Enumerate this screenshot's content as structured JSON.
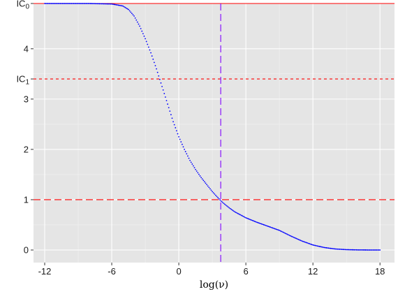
{
  "chart_data": {
    "type": "scatter",
    "xlabel": "log(ν)",
    "ylabel": "",
    "xlim": [
      -13,
      19.3
    ],
    "ylim": [
      -0.25,
      4.9
    ],
    "x_ticks": [
      -12,
      -6,
      0,
      6,
      12,
      18
    ],
    "x_tick_labels": [
      "-12",
      "-6",
      "0",
      "6",
      "12",
      "18"
    ],
    "y_ticks": [
      0,
      1,
      2,
      3,
      4
    ],
    "y_tick_labels": [
      "0",
      "1",
      "2",
      "3",
      "4"
    ],
    "grid": true,
    "panel_background": "#e5e5e5",
    "series": [
      {
        "color": "#0000ff",
        "marker": "point",
        "x_range": [
          -12,
          18
        ],
        "points": [
          [
            -12,
            4.9
          ],
          [
            -8,
            4.9
          ],
          [
            -6,
            4.89
          ],
          [
            -5,
            4.85
          ],
          [
            -4.5,
            4.78
          ],
          [
            -4,
            4.65
          ],
          [
            -3.5,
            4.45
          ],
          [
            -3,
            4.2
          ],
          [
            -2.5,
            3.92
          ],
          [
            -2,
            3.6
          ],
          [
            -1.5,
            3.25
          ],
          [
            -1,
            2.9
          ],
          [
            -0.5,
            2.55
          ],
          [
            0,
            2.25
          ],
          [
            0.5,
            2.0
          ],
          [
            1,
            1.78
          ],
          [
            1.5,
            1.6
          ],
          [
            2,
            1.44
          ],
          [
            2.5,
            1.3
          ],
          [
            3,
            1.16
          ],
          [
            3.5,
            1.04
          ],
          [
            3.8,
            0.97
          ],
          [
            4,
            0.93
          ],
          [
            4.5,
            0.84
          ],
          [
            5,
            0.76
          ],
          [
            6,
            0.64
          ],
          [
            7,
            0.55
          ],
          [
            8,
            0.47
          ],
          [
            9,
            0.39
          ],
          [
            10,
            0.28
          ],
          [
            11,
            0.18
          ],
          [
            12,
            0.1
          ],
          [
            13,
            0.05
          ],
          [
            14,
            0.02
          ],
          [
            15,
            0.007
          ],
          [
            16,
            0.002
          ],
          [
            17,
            0.0
          ],
          [
            18,
            0.0
          ]
        ]
      }
    ],
    "reference_lines": [
      {
        "orientation": "horizontal",
        "y": 4.9,
        "label": "IC0",
        "label_main": "IC",
        "label_sub": "0",
        "color": "#ff0000",
        "style": "solid"
      },
      {
        "orientation": "horizontal",
        "y": 3.4,
        "label": "IC1",
        "label_main": "IC",
        "label_sub": "1",
        "color": "#ff0000",
        "style": "dashed"
      },
      {
        "orientation": "horizontal",
        "y": 1,
        "color": "#ff0000",
        "style": "longdash"
      },
      {
        "orientation": "vertical",
        "x": 3.75,
        "color": "#7f00ff",
        "style": "longdash"
      }
    ]
  }
}
